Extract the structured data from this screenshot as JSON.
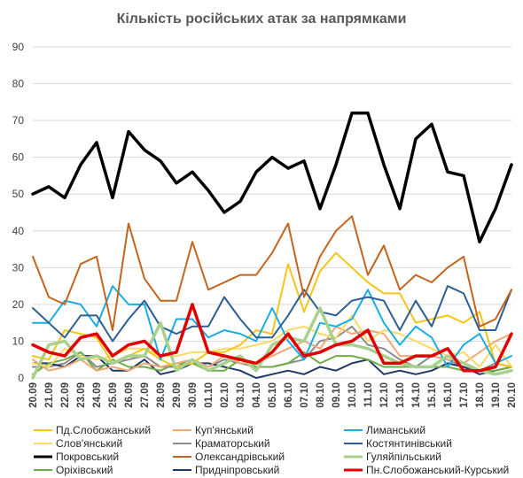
{
  "chart_data": {
    "type": "line",
    "title": "Кількість російських атак за напрямками",
    "ylim": [
      0,
      90
    ],
    "yticks": [
      0,
      10,
      20,
      30,
      40,
      50,
      60,
      70,
      80,
      90
    ],
    "grid": true,
    "legend_position": "bottom",
    "categories": [
      "20.09",
      "21.09",
      "22.09",
      "23.09",
      "24.09",
      "25.09",
      "26.09",
      "27.09",
      "28.09",
      "29.09",
      "30.09",
      "01.10",
      "02.10",
      "03.10",
      "04.10",
      "05.10",
      "06.10",
      "07.10",
      "08.10",
      "09.10",
      "10.10",
      "11.10",
      "12.10",
      "13.10",
      "14.10",
      "15.10",
      "16.10",
      "17.10",
      "18.10",
      "19.10",
      "20.10"
    ],
    "series": [
      {
        "name": "Пд.Слобожанський",
        "color": "#f5c518",
        "width": 2,
        "values": [
          6,
          5,
          13,
          12,
          11,
          4,
          6,
          8,
          5,
          3,
          4,
          7,
          7,
          9,
          13,
          12,
          31,
          18,
          29,
          34,
          30,
          26,
          23,
          23,
          15,
          16,
          17,
          15,
          18,
          4,
          3
        ]
      },
      {
        "name": "Куп'янський",
        "color": "#f0a878",
        "width": 2,
        "values": [
          5,
          2,
          3,
          5,
          2,
          3,
          2,
          4,
          3,
          4,
          5,
          3,
          6,
          4,
          4,
          6,
          8,
          10,
          8,
          14,
          12,
          13,
          12,
          6,
          6,
          6,
          5,
          4,
          7,
          10,
          12
        ]
      },
      {
        "name": "Лиманський",
        "color": "#1aace3",
        "width": 2,
        "values": [
          15,
          15,
          21,
          20,
          14,
          25,
          20,
          20,
          5,
          16,
          16,
          11,
          13,
          12,
          10,
          19,
          10,
          5,
          15,
          14,
          16,
          24,
          15,
          9,
          14,
          11,
          3,
          9,
          12,
          4,
          6
        ]
      },
      {
        "name": "Слов'янський",
        "color": "#ffd966",
        "width": 2,
        "values": [
          4,
          3,
          8,
          6,
          5,
          6,
          8,
          8,
          6,
          6,
          7,
          7,
          8,
          8,
          9,
          10,
          13,
          14,
          12,
          11,
          17,
          10,
          13,
          12,
          10,
          8,
          6,
          7,
          3,
          9,
          3
        ]
      },
      {
        "name": "Краматорський",
        "color": "#8c8c8c",
        "width": 2,
        "values": [
          3,
          3,
          4,
          7,
          3,
          4,
          5,
          6,
          3,
          3,
          5,
          3,
          5,
          4,
          3,
          3,
          4,
          5,
          10,
          11,
          14,
          9,
          8,
          5,
          3,
          6,
          5,
          3,
          2,
          4,
          3
        ]
      },
      {
        "name": "Костянтинівський",
        "color": "#2e5e96",
        "width": 2,
        "values": [
          19,
          15,
          11,
          17,
          17,
          10,
          16,
          21,
          14,
          12,
          14,
          14,
          22,
          16,
          11,
          11,
          17,
          24,
          18,
          17,
          21,
          22,
          21,
          13,
          21,
          14,
          25,
          23,
          13,
          13,
          24
        ]
      },
      {
        "name": "Покровський",
        "color": "#000000",
        "width": 3.5,
        "values": [
          50,
          52,
          49,
          58,
          64,
          49,
          67,
          62,
          59,
          53,
          56,
          51,
          45,
          48,
          56,
          60,
          57,
          59,
          46,
          58,
          72,
          72,
          58,
          46,
          65,
          69,
          56,
          55,
          37,
          46,
          58
        ]
      },
      {
        "name": "Олександрівський",
        "color": "#c5641e",
        "width": 2,
        "values": [
          33,
          22,
          20,
          31,
          33,
          13,
          42,
          27,
          21,
          21,
          37,
          24,
          26,
          28,
          28,
          34,
          42,
          22,
          33,
          40,
          44,
          28,
          36,
          24,
          28,
          26,
          30,
          33,
          14,
          16,
          24
        ]
      },
      {
        "name": "Гуляйпільський",
        "color": "#a9d18e",
        "width": 3.5,
        "values": [
          0,
          9,
          10,
          5,
          6,
          4,
          6,
          6,
          15,
          2,
          5,
          2,
          4,
          6,
          2,
          9,
          11,
          10,
          19,
          9,
          9,
          8,
          6,
          4,
          3,
          3,
          6,
          4,
          2,
          1,
          2
        ]
      },
      {
        "name": "Оріхівський",
        "color": "#70ad47",
        "width": 2,
        "values": [
          1,
          4,
          5,
          7,
          2,
          5,
          3,
          3,
          2,
          4,
          4,
          2,
          2,
          5,
          3,
          3,
          4,
          7,
          4,
          6,
          6,
          5,
          3,
          3,
          3,
          3,
          3,
          2,
          2,
          2,
          3
        ]
      },
      {
        "name": "Придніпровський",
        "color": "#203864",
        "width": 2,
        "values": [
          4,
          4,
          3,
          6,
          6,
          2,
          2,
          5,
          1,
          2,
          4,
          4,
          3,
          2,
          0,
          1,
          2,
          1,
          3,
          2,
          4,
          5,
          1,
          2,
          1,
          2,
          4,
          3,
          1,
          2,
          3
        ]
      },
      {
        "name": "Пн.Слобожанський-Курський",
        "color": "#e00000",
        "width": 3.5,
        "values": [
          9,
          7,
          6,
          11,
          12,
          6,
          9,
          10,
          6,
          7,
          20,
          7,
          6,
          5,
          4,
          7,
          12,
          6,
          7,
          9,
          10,
          13,
          4,
          4,
          6,
          6,
          8,
          2,
          2,
          3,
          12
        ]
      }
    ]
  }
}
